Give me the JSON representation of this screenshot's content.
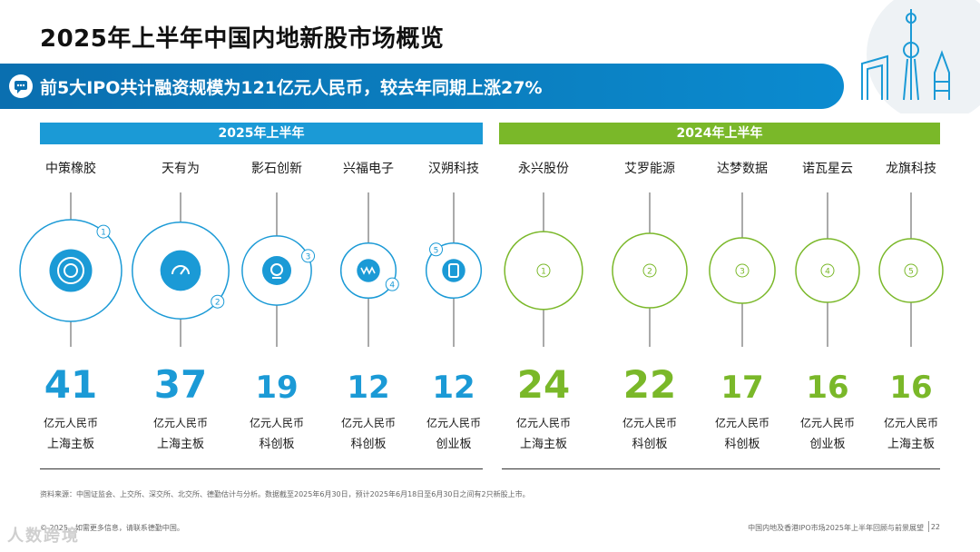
{
  "page": {
    "title": "2025年上半年中国内地新股市场概览",
    "banner": "前5大IPO共计融资规模为121亿元人民币，较去年同期上涨27%",
    "source": "资料来源：中国证监会、上交所、深交所、北交所、德勤估计与分析。数据截至2025年6月30日，预计2025年6月18日至6月30日之间有2只新股上市。",
    "footer_left": "© 2025。如需更多信息，请联系德勤中国。",
    "footer_right": "中国内地及香港IPO市场2025年上半年回顾与前景展望",
    "page_number": "22",
    "watermark": "人数跨境",
    "colors": {
      "blue": "#1b9ad6",
      "green": "#7ab829",
      "banner": "#0a6fb0"
    }
  },
  "chart_data": {
    "type": "bubble",
    "title": "前5大IPO共计融资规模为121亿元人民币，较去年同期上涨27%",
    "unit": "亿元人民币",
    "groups": [
      {
        "name": "2025年上半年",
        "color": "#1b9ad6",
        "items": [
          {
            "rank": "1",
            "company": "中策橡胶",
            "value": 41,
            "unit": "亿元人民币",
            "board": "上海主板",
            "icon": "tire-icon"
          },
          {
            "rank": "2",
            "company": "天有为",
            "value": 37,
            "unit": "亿元人民币",
            "board": "上海主板",
            "icon": "gauge-icon"
          },
          {
            "rank": "3",
            "company": "影石创新",
            "value": 19,
            "unit": "亿元人民币",
            "board": "科创板",
            "icon": "camera-icon"
          },
          {
            "rank": "4",
            "company": "兴福电子",
            "value": 12,
            "unit": "亿元人民币",
            "board": "科创板",
            "icon": "chip-icon"
          },
          {
            "rank": "5",
            "company": "汉朔科技",
            "value": 12,
            "unit": "亿元人民币",
            "board": "创业板",
            "icon": "tag-icon"
          }
        ]
      },
      {
        "name": "2024年上半年",
        "color": "#7ab829",
        "items": [
          {
            "rank": "1",
            "company": "永兴股份",
            "value": 24,
            "unit": "亿元人民币",
            "board": "上海主板"
          },
          {
            "rank": "2",
            "company": "艾罗能源",
            "value": 22,
            "unit": "亿元人民币",
            "board": "科创板"
          },
          {
            "rank": "3",
            "company": "达梦数据",
            "value": 17,
            "unit": "亿元人民币",
            "board": "科创板"
          },
          {
            "rank": "4",
            "company": "诺瓦星云",
            "value": 16,
            "unit": "亿元人民币",
            "board": "创业板"
          },
          {
            "rank": "5",
            "company": "龙旗科技",
            "value": 16,
            "unit": "亿元人民币",
            "board": "上海主板"
          }
        ]
      }
    ]
  }
}
